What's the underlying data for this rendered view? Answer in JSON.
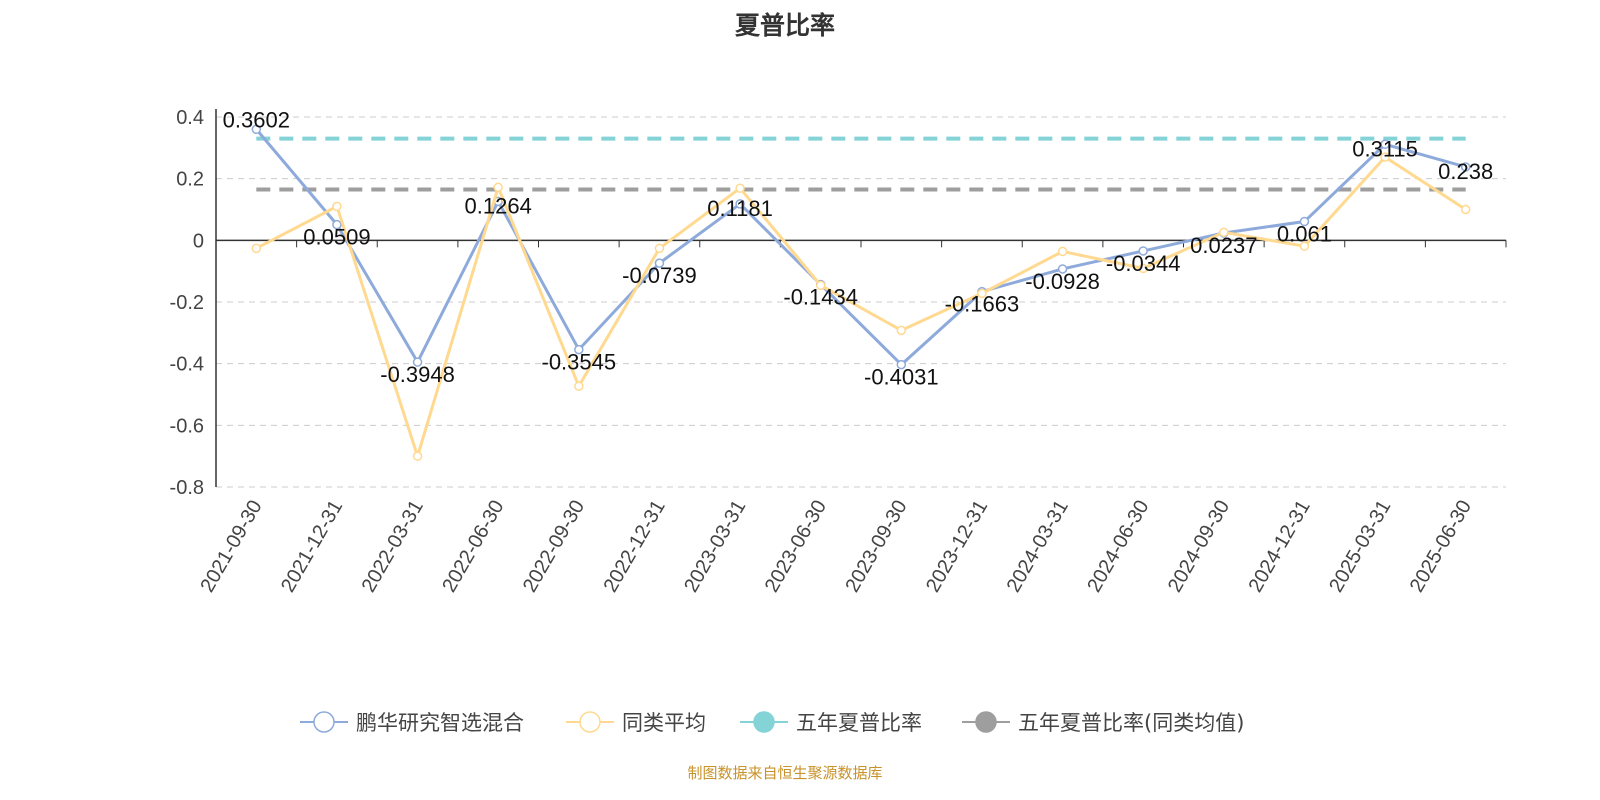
{
  "chart_data": {
    "type": "line",
    "title": "夏普比率",
    "categories": [
      "2021-09-30",
      "2021-12-31",
      "2022-03-31",
      "2022-06-30",
      "2022-09-30",
      "2022-12-31",
      "2023-03-31",
      "2023-06-30",
      "2023-09-30",
      "2023-12-31",
      "2024-03-31",
      "2024-06-30",
      "2024-09-30",
      "2024-12-31",
      "2025-03-31",
      "2025-06-30"
    ],
    "ylim": [
      -0.8,
      0.4
    ],
    "yticks": [
      0.4,
      0.2,
      0,
      -0.2,
      -0.4,
      -0.6,
      -0.8
    ],
    "grid": true,
    "legend_position": "bottom",
    "series": [
      {
        "name": "鹏华研究智选混合",
        "color": "#8eaadb",
        "labels": true,
        "values": [
          0.3602,
          0.0509,
          -0.3948,
          0.1264,
          -0.3545,
          -0.0739,
          0.1181,
          -0.1434,
          -0.4031,
          -0.1663,
          -0.0928,
          -0.0344,
          0.0237,
          0.061,
          0.3115,
          0.238
        ]
      },
      {
        "name": "同类平均",
        "color": "#ffd990",
        "labels": false,
        "values": [
          -0.026,
          0.11,
          -0.7,
          0.172,
          -0.473,
          -0.026,
          0.169,
          -0.146,
          -0.292,
          -0.172,
          -0.036,
          -0.091,
          0.026,
          -0.019,
          0.27,
          0.1
        ]
      },
      {
        "name": "五年夏普比率",
        "color": "#84d3d6",
        "constant": 0.33
      },
      {
        "name": "五年夏普比率(同类均值)",
        "color": "#9e9e9e",
        "constant": 0.165
      }
    ]
  },
  "footer": {
    "source": "制图数据来自恒生聚源数据库"
  }
}
